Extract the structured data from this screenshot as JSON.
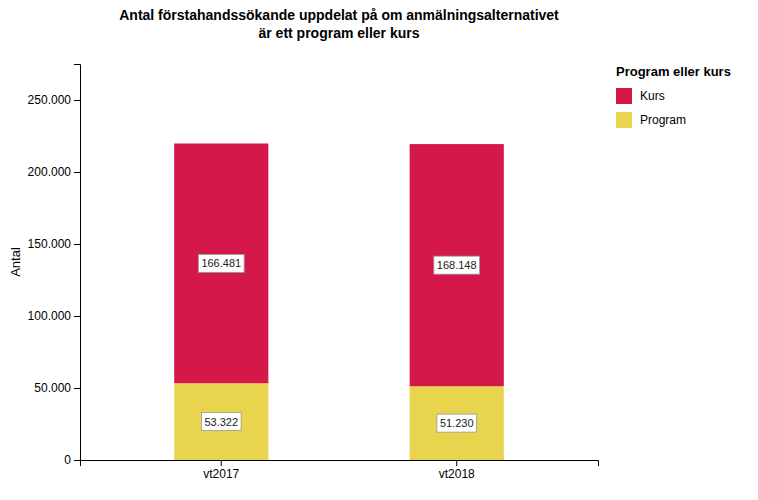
{
  "chart_data": {
    "type": "bar",
    "stacked": true,
    "title": "Antal förstahandssökande uppdelat på om anmälningsalternativet\när ett program eller kurs",
    "ylabel": "Antal",
    "legend_title": "Program eller kurs",
    "legend": "right",
    "categories": [
      "vt2017",
      "vt2018"
    ],
    "series": [
      {
        "name": "Program",
        "color": "#E8D44D",
        "values": [
          53322,
          51230
        ],
        "value_labels": [
          "53.322",
          "51.230"
        ]
      },
      {
        "name": "Kurs",
        "color": "#D4184A",
        "values": [
          166481,
          168148
        ],
        "value_labels": [
          "166.481",
          "168.148"
        ]
      }
    ],
    "ylim": [
      0,
      275000
    ],
    "yticks": [
      0,
      {
        "value": 50000,
        "label": "50.000"
      },
      {
        "value": 100000,
        "label": "100.000"
      },
      {
        "value": 150000,
        "label": "150.000"
      },
      {
        "value": 200000,
        "label": "200.000"
      },
      {
        "value": 250000,
        "label": "250.000"
      }
    ],
    "grid": false,
    "data_labels": true
  }
}
